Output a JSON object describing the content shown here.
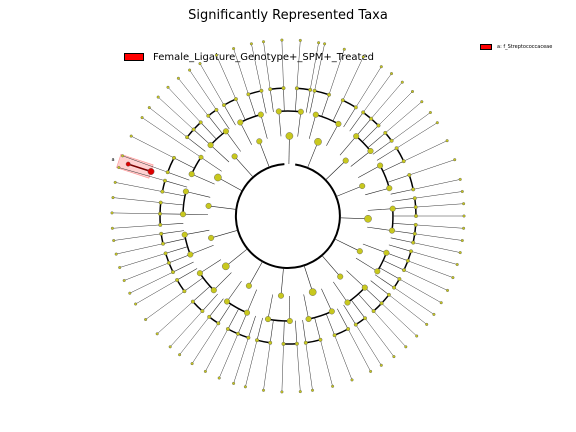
{
  "figure": {
    "title": "Significantly Represented Taxa",
    "legend": {
      "entry": "Female_Ligature_Genotype+_SPM+_Treated",
      "color": "#ff0000"
    },
    "clade_legend": {
      "entry": "a: f_Streptococcaceae",
      "color": "#ff0000"
    },
    "highlight_label": "a",
    "node_color": "#c8c81e",
    "highlight_node_color": "#dd0000"
  }
}
